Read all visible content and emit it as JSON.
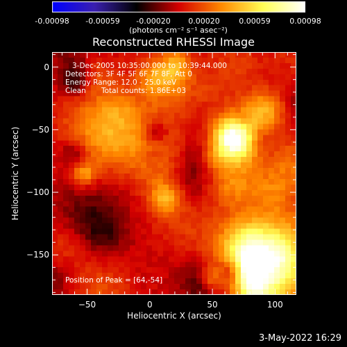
{
  "title": "Reconstructed RHESSI Image",
  "colorbar": {
    "ticks": [
      "-0.00098",
      "-0.00059",
      "-0.00020",
      "0.00020",
      "0.00059",
      "0.00098"
    ],
    "units": "(photons cm⁻² s⁻¹ asec⁻²)"
  },
  "annotations": {
    "time_range": "3-Dec-2005 10:35:00.000 to 10:39:44.000",
    "detectors": "Detectors: 3F 4F 5F 6F 7F 8F, Att 0",
    "energy_range": "Energy Range: 12.0 - 25.0 keV",
    "clean_label": "Clean",
    "total_counts": "Total counts: 1.86E+03",
    "peak_position": "Position of Peak = [64,-54]"
  },
  "axes": {
    "xlabel": "Heliocentric X (arcsec)",
    "ylabel": "Heliocentric Y (arcsec)",
    "x_range": [
      -78,
      117
    ],
    "y_range": [
      -182,
      12
    ],
    "x_ticks": [
      -50,
      0,
      50,
      100
    ],
    "y_ticks": [
      0,
      -50,
      -100,
      -150
    ],
    "x_tick_labels": [
      "−50",
      "0",
      "50",
      "100"
    ],
    "y_tick_labels": [
      "0",
      "−50",
      "−100",
      "−150"
    ]
  },
  "timestamp": "3-May-2022 16:29",
  "colormap_stops": [
    "#0000ff",
    "#3a1fb0",
    "#000000",
    "#d40000",
    "#ff8800",
    "#ffff55",
    "#ffffff"
  ]
}
